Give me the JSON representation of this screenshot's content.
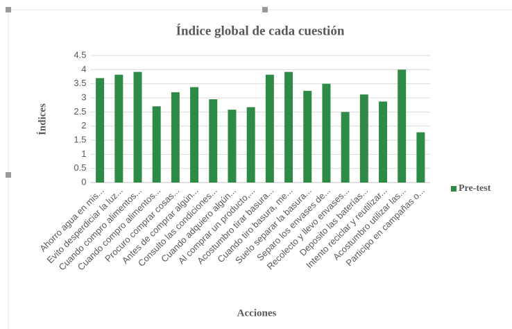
{
  "chart_data": {
    "type": "bar",
    "title": "Índice global de cada cuestión",
    "xlabel": "Acciones",
    "ylabel": "Índices",
    "categories": [
      "Ahorro agua en mis...",
      "Evito desperdiciar la luz...",
      "Cuando compro alimentos...",
      "Cuando compro alimentos...",
      "Procuro comprar cosas...",
      "Antes de comprar algún...",
      "Consulto las condiciones...",
      "Cuando adquiero algún...",
      "Al comprar un producto,...",
      "Acostumbro tirar basura...",
      "Cuando tiro basura, me...",
      "Suelo separar la basura...",
      "Separo los envases de...",
      "Recolecto y llevo envases...",
      "Deposito las baterías...",
      "Intento reciclar y reutilizar...",
      "Acostumbro utilizar las...",
      "Participo en campañas o..."
    ],
    "series": [
      {
        "name": "Pre-test",
        "color": "#2e8b45",
        "values": [
          3.7,
          3.82,
          3.92,
          2.7,
          3.2,
          3.38,
          2.95,
          2.58,
          2.67,
          3.82,
          3.92,
          3.25,
          3.5,
          2.5,
          3.12,
          2.87,
          4.0,
          1.78
        ]
      }
    ],
    "ylim": [
      0,
      4.5
    ],
    "yticks": [
      0,
      0.5,
      1,
      1.5,
      2,
      2.5,
      3,
      3.5,
      4,
      4.5
    ],
    "grid": true,
    "legend": "right"
  }
}
